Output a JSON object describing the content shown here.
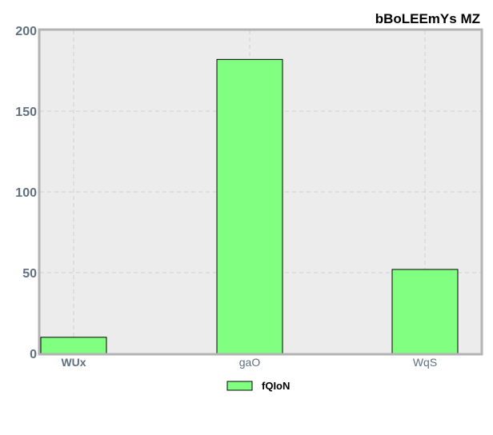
{
  "chart_data": {
    "type": "bar",
    "title": "bBoLEEmYs MZ",
    "xlabel": "",
    "ylabel": "",
    "categories": [
      "WUx",
      "gaO",
      "WqS"
    ],
    "series": [
      {
        "name": "fQIoN",
        "values": [
          10,
          182,
          52
        ],
        "color": "#80ff80"
      }
    ],
    "ylim": [
      0,
      200
    ],
    "yticks": [
      0,
      50,
      100,
      150,
      200
    ],
    "grid": true,
    "legend_position": "bottom-center"
  },
  "colors": {
    "plot_background": "#ececec",
    "grid": "#cfcfcf",
    "axis": "#b3b3b3",
    "tick_label": "#607080",
    "bar_fill": "#80ff80",
    "bar_stroke": "#000000",
    "title": "#000000"
  }
}
